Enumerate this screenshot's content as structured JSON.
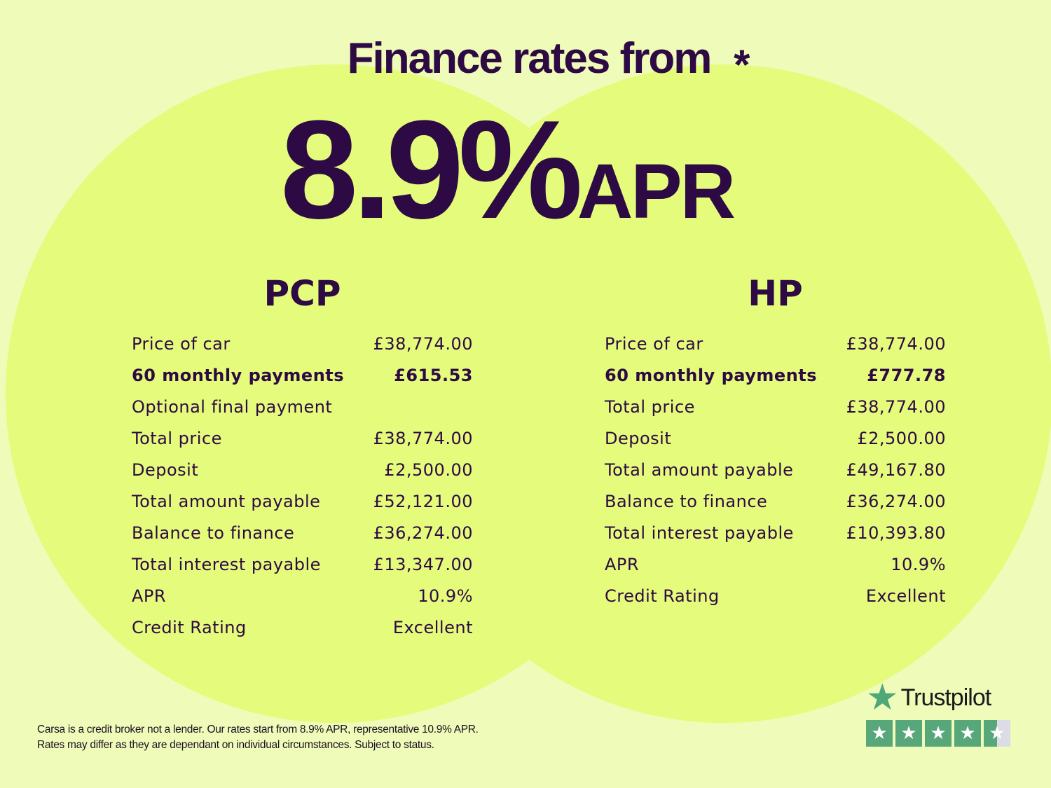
{
  "headline": {
    "title": "Finance rates from",
    "rate": "8.9%",
    "suffix": "APR",
    "asterisk": "*"
  },
  "pcp": {
    "heading": "PCP",
    "rows": [
      {
        "label": "Price of car",
        "value": "£38,774.00"
      },
      {
        "label": "60 monthly payments",
        "value": "£615.53",
        "bold": true
      },
      {
        "label": "Optional final payment",
        "value": ""
      },
      {
        "label": "Total price",
        "value": "£38,774.00"
      },
      {
        "label": "Deposit",
        "value": "£2,500.00"
      },
      {
        "label": "Total amount payable",
        "value": "£52,121.00"
      },
      {
        "label": "Balance to finance",
        "value": "£36,274.00"
      },
      {
        "label": "Total interest payable",
        "value": "£13,347.00"
      },
      {
        "label": "APR",
        "value": "10.9%"
      },
      {
        "label": "Credit Rating",
        "value": "Excellent"
      }
    ]
  },
  "hp": {
    "heading": "HP",
    "rows": [
      {
        "label": "Price of car",
        "value": "£38,774.00"
      },
      {
        "label": "60 monthly payments",
        "value": "£777.78",
        "bold": true
      },
      {
        "label": "Total price",
        "value": "£38,774.00"
      },
      {
        "label": "Deposit",
        "value": "£2,500.00"
      },
      {
        "label": "Total amount payable",
        "value": "£49,167.80"
      },
      {
        "label": "Balance to finance",
        "value": "£36,274.00"
      },
      {
        "label": "Total interest payable",
        "value": "£10,393.80"
      },
      {
        "label": "APR",
        "value": "10.9%"
      },
      {
        "label": "Credit Rating",
        "value": "Excellent"
      }
    ]
  },
  "footer": {
    "line1": "Carsa is a credit broker not a lender. Our rates start from 8.9% APR, representative 10.9% APR.",
    "line2": "Rates may differ as they are dependant on individual circumstances. Subject to status."
  },
  "trustpilot": {
    "brand": "Trustpilot",
    "icon": "star-icon",
    "rating_stars": 4.5,
    "max_stars": 5,
    "color": "#58a77b"
  },
  "colors": {
    "background": "#effbb9",
    "circle": "#e4fb7b",
    "text": "#2d0a43"
  }
}
